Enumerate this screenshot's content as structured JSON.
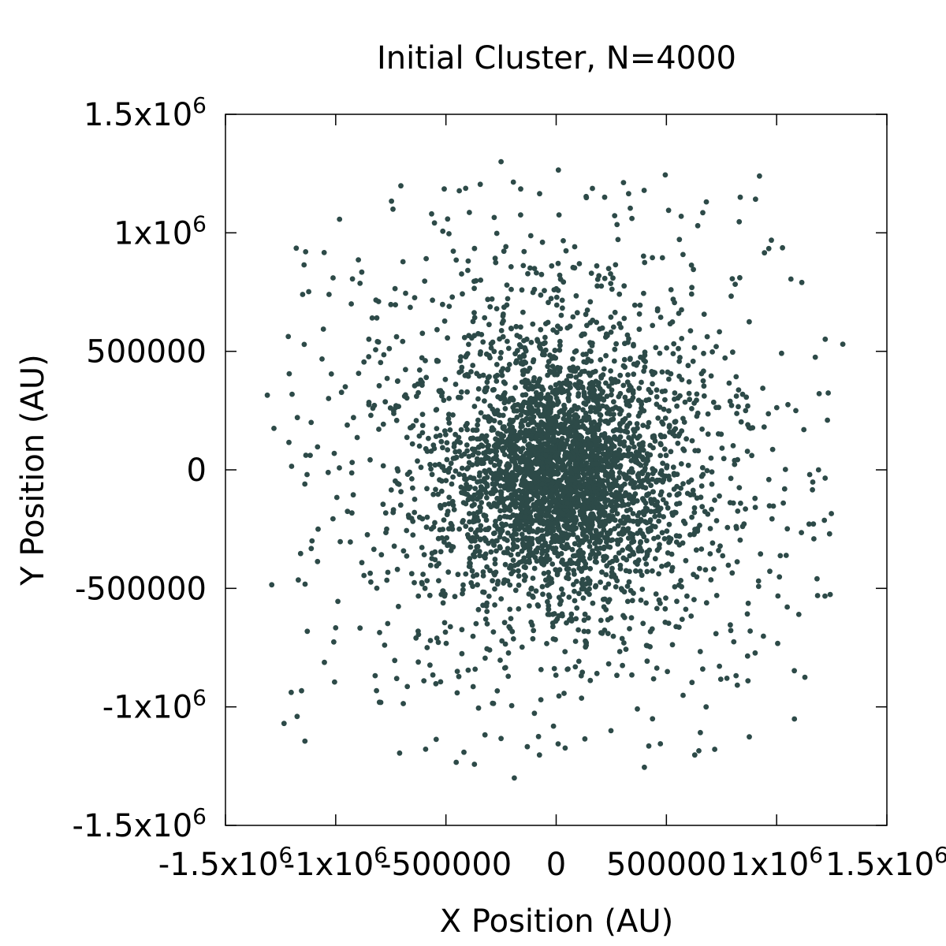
{
  "chart_data": {
    "type": "scatter",
    "title": "Initial Cluster, N=4000",
    "xlabel": "X Position (AU)",
    "ylabel": "Y Position (AU)",
    "xlim": [
      -1500000,
      1500000
    ],
    "ylim": [
      -1500000,
      1500000
    ],
    "grid": false,
    "legend": "none",
    "point_color": "#2d4a48",
    "x_ticks": [
      {
        "value": -1500000,
        "base": "-1.5x10",
        "exp": "6"
      },
      {
        "value": -1000000,
        "base": "-1x10",
        "exp": "6"
      },
      {
        "value": -500000,
        "base": "-500000",
        "exp": ""
      },
      {
        "value": 0,
        "base": "0",
        "exp": ""
      },
      {
        "value": 500000,
        "base": "500000",
        "exp": ""
      },
      {
        "value": 1000000,
        "base": "1x10",
        "exp": "6"
      },
      {
        "value": 1500000,
        "base": "1.5x10",
        "exp": "6"
      }
    ],
    "y_ticks": [
      {
        "value": 1500000,
        "base": "1.5x10",
        "exp": "6"
      },
      {
        "value": 1000000,
        "base": "1x10",
        "exp": "6"
      },
      {
        "value": 500000,
        "base": "500000",
        "exp": ""
      },
      {
        "value": 0,
        "base": "0",
        "exp": ""
      },
      {
        "value": -500000,
        "base": "-500000",
        "exp": ""
      },
      {
        "value": -1000000,
        "base": "-1x10",
        "exp": "6"
      },
      {
        "value": -1500000,
        "base": "-1.5x10",
        "exp": "6"
      }
    ],
    "series": [
      {
        "n_points": 4000,
        "distribution": "plummer-like cluster centred near origin",
        "outliers": [
          [
            -250000,
            1300000
          ],
          [
            10000,
            1265000
          ],
          [
            -75000,
            1165000
          ],
          [
            220000,
            1150000
          ],
          [
            835000,
            1150000
          ],
          [
            -740000,
            1100000
          ],
          [
            -565000,
            1080000
          ],
          [
            510000,
            1095000
          ],
          [
            665000,
            1085000
          ],
          [
            -1150000,
            740000
          ],
          [
            -1030000,
            740000
          ],
          [
            1065000,
            805000
          ],
          [
            1300000,
            530000
          ],
          [
            -1310000,
            315000
          ],
          [
            -1280000,
            175000
          ],
          [
            -1200000,
            15000
          ],
          [
            -1130000,
            -20000
          ],
          [
            -1140000,
            -60000
          ],
          [
            -1080000,
            -250000
          ],
          [
            -1290000,
            -485000
          ],
          [
            -990000,
            -555000
          ],
          [
            -710000,
            -1195000
          ],
          [
            -190000,
            -1300000
          ],
          [
            400000,
            -1255000
          ],
          [
            420000,
            -1165000
          ],
          [
            -80000,
            -1125000
          ],
          [
            130000,
            -1135000
          ],
          [
            680000,
            -1000000
          ],
          [
            870000,
            -890000
          ],
          [
            1240000,
            -270000
          ],
          [
            1150000,
            -20000
          ],
          [
            1190000,
            0
          ],
          [
            1220000,
            -35000
          ],
          [
            1030000,
            -140000
          ],
          [
            880000,
            -680000
          ],
          [
            -600000,
            -890000
          ]
        ]
      }
    ]
  }
}
